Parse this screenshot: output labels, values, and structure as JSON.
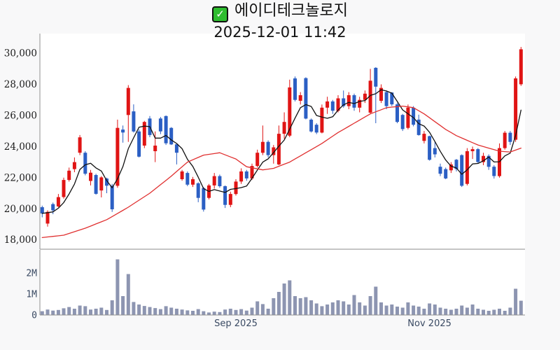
{
  "header": {
    "checkbox_icon": "✓",
    "title": "에이디테크놀로지",
    "timestamp": "2025-12-01 11:42"
  },
  "colors": {
    "background": "#f8f8f9",
    "panel_background": "#ffffff",
    "axis_spine": "#8f8f8f",
    "price_label": "#1a1a1a",
    "volume_label": "#3a4a63",
    "date_label": "#3a4a63",
    "checkbox_green": "#2ebd2f",
    "up_candle": "#e01414",
    "down_candle": "#2b5fc4",
    "ma_short": "#111111",
    "ma_long": "#e03030",
    "volume_bar": "#8d95b1"
  },
  "chart_data": {
    "type": "candlestick",
    "title": "에이디테크놀로지",
    "datetime": "2025-12-01 11:42",
    "grid": false,
    "legend": false,
    "price_axis": {
      "labels": [
        "30,000",
        "28,000",
        "26,000",
        "24,000",
        "22,000",
        "20,000",
        "18,000"
      ],
      "values": [
        30000,
        28000,
        26000,
        24000,
        22000,
        20000,
        18000
      ],
      "range": [
        17450,
        31250
      ]
    },
    "volume_axis": {
      "labels": [
        "2M",
        "1M",
        "0"
      ],
      "values": [
        2000000,
        1000000,
        0
      ],
      "range": [
        0,
        3100000
      ]
    },
    "x_axis": {
      "ticks": [
        {
          "label": "Sep 2025",
          "index": 36
        },
        {
          "label": "Nov 2025",
          "index": 72
        }
      ]
    },
    "candles": {
      "open": [
        20100,
        19050,
        20300,
        20150,
        20750,
        21850,
        22550,
        23600,
        23600,
        21790,
        22170,
        21180,
        21940,
        21480,
        21480,
        25090,
        26030,
        26260,
        24970,
        24060,
        25800,
        23700,
        25800,
        25960,
        25200,
        24140,
        21900,
        22300,
        21550,
        21640,
        21330,
        20700,
        21500,
        22100,
        21450,
        20250,
        20950,
        21750,
        22400,
        21950,
        22750,
        23600,
        24300,
        23450,
        22850,
        24820,
        24700,
        28380,
        26940,
        28400,
        25730,
        25400,
        24900,
        26500,
        26900,
        26300,
        27100,
        26600,
        27300,
        26500,
        27000,
        26180,
        29060,
        26940,
        27500,
        27470,
        26710,
        26030,
        25200,
        26500,
        25730,
        24360,
        24670,
        23900,
        22700,
        22550,
        22470,
        23150,
        23450,
        21600,
        23700,
        23830,
        23000,
        23400,
        22700,
        22100,
        23900,
        24890,
        24440,
        28000
      ],
      "high": [
        20200,
        19900,
        20400,
        20950,
        22000,
        22650,
        23300,
        24740,
        23700,
        22500,
        22250,
        22100,
        22000,
        21600,
        25730,
        25350,
        27950,
        26710,
        25100,
        25650,
        25960,
        24970,
        25900,
        26000,
        25250,
        24200,
        22500,
        22400,
        22050,
        21700,
        21400,
        21600,
        22300,
        22200,
        21500,
        21100,
        21900,
        22600,
        22500,
        22900,
        23800,
        25350,
        24400,
        24100,
        25350,
        26200,
        28300,
        28500,
        27500,
        28450,
        25800,
        25500,
        26700,
        27200,
        27000,
        27300,
        27600,
        27500,
        27400,
        27200,
        27600,
        28990,
        29100,
        28000,
        27600,
        27500,
        26800,
        26100,
        26700,
        26600,
        26050,
        25000,
        24700,
        24300,
        22900,
        22650,
        23000,
        23200,
        23500,
        23900,
        24000,
        23900,
        23600,
        23500,
        22800,
        24200,
        25000,
        25000,
        28500,
        30400
      ],
      "low": [
        19450,
        18850,
        19650,
        20100,
        20650,
        21750,
        22350,
        23450,
        22150,
        21500,
        20900,
        20730,
        21000,
        19800,
        21350,
        24250,
        24300,
        24900,
        23300,
        23900,
        24600,
        23000,
        24800,
        24100,
        24100,
        22850,
        21800,
        21450,
        21400,
        20420,
        19820,
        20600,
        21300,
        21350,
        20050,
        20100,
        20850,
        21600,
        21800,
        21850,
        22650,
        23450,
        23300,
        22900,
        22800,
        24500,
        24600,
        26900,
        26700,
        25750,
        24900,
        24800,
        24850,
        26100,
        26100,
        26200,
        26500,
        26400,
        26300,
        26200,
        26800,
        26100,
        25500,
        26800,
        26400,
        26600,
        25500,
        25000,
        25100,
        25300,
        24700,
        24200,
        23100,
        23300,
        22100,
        21900,
        22300,
        22400,
        21400,
        21500,
        23200,
        22900,
        22800,
        22500,
        21940,
        22000,
        23800,
        24100,
        24300,
        27900
      ],
      "close": [
        19700,
        19800,
        19900,
        20750,
        21850,
        22450,
        23000,
        24590,
        22250,
        22320,
        20960,
        22020,
        21480,
        19970,
        25200,
        24900,
        27770,
        24970,
        23350,
        25580,
        24740,
        24060,
        24970,
        24210,
        24140,
        23600,
        22400,
        21550,
        21900,
        20700,
        19950,
        21500,
        22100,
        21450,
        20250,
        20950,
        21750,
        22400,
        21950,
        22750,
        23600,
        24300,
        23450,
        23950,
        24820,
        25580,
        27800,
        27000,
        27300,
        25800,
        24970,
        24900,
        26500,
        26900,
        26300,
        27100,
        26600,
        27300,
        26500,
        27000,
        27400,
        28230,
        27850,
        27770,
        26600,
        26710,
        25580,
        25120,
        26500,
        25400,
        24740,
        24820,
        23150,
        23500,
        22250,
        21950,
        22850,
        22550,
        21480,
        23700,
        23830,
        23000,
        23400,
        22700,
        22100,
        23900,
        24890,
        24300,
        28380,
        30250
      ]
    },
    "volume": [
      180000,
      260000,
      210000,
      240000,
      320000,
      380000,
      300000,
      450000,
      420000,
      260000,
      300000,
      350000,
      240000,
      700000,
      2650000,
      900000,
      1950000,
      620000,
      500000,
      430000,
      380000,
      330000,
      280000,
      420000,
      350000,
      300000,
      260000,
      220000,
      200000,
      280000,
      180000,
      120000,
      160000,
      140000,
      260000,
      300000,
      240000,
      280000,
      210000,
      350000,
      650000,
      520000,
      300000,
      800000,
      1100000,
      1500000,
      1650000,
      900000,
      800000,
      850000,
      700000,
      550000,
      420000,
      500000,
      600000,
      700000,
      650000,
      500000,
      950000,
      600000,
      450000,
      900000,
      1350000,
      600000,
      450000,
      500000,
      400000,
      350000,
      600000,
      450000,
      400000,
      300000,
      550000,
      500000,
      350000,
      300000,
      250000,
      300000,
      450000,
      350000,
      500000,
      300000,
      250000,
      200000,
      250000,
      300000,
      200000,
      350000,
      1250000,
      680000
    ],
    "ma_short_window": 5,
    "ma_long_waypoints": [
      [
        0,
        18150
      ],
      [
        4,
        18300
      ],
      [
        8,
        18750
      ],
      [
        12,
        19300
      ],
      [
        16,
        20100
      ],
      [
        20,
        21000
      ],
      [
        24,
        22100
      ],
      [
        27,
        23000
      ],
      [
        30,
        23450
      ],
      [
        33,
        23600
      ],
      [
        36,
        23200
      ],
      [
        38,
        22700
      ],
      [
        41,
        22500
      ],
      [
        43,
        22600
      ],
      [
        46,
        23000
      ],
      [
        49,
        23600
      ],
      [
        52,
        24200
      ],
      [
        55,
        24900
      ],
      [
        58,
        25500
      ],
      [
        61,
        26100
      ],
      [
        64,
        26500
      ],
      [
        67,
        26600
      ],
      [
        69,
        26500
      ],
      [
        71,
        26100
      ],
      [
        73,
        25600
      ],
      [
        75,
        25100
      ],
      [
        77,
        24700
      ],
      [
        79,
        24400
      ],
      [
        81,
        24100
      ],
      [
        83,
        23900
      ],
      [
        85,
        23700
      ],
      [
        87,
        23650
      ],
      [
        89,
        23900
      ]
    ]
  }
}
